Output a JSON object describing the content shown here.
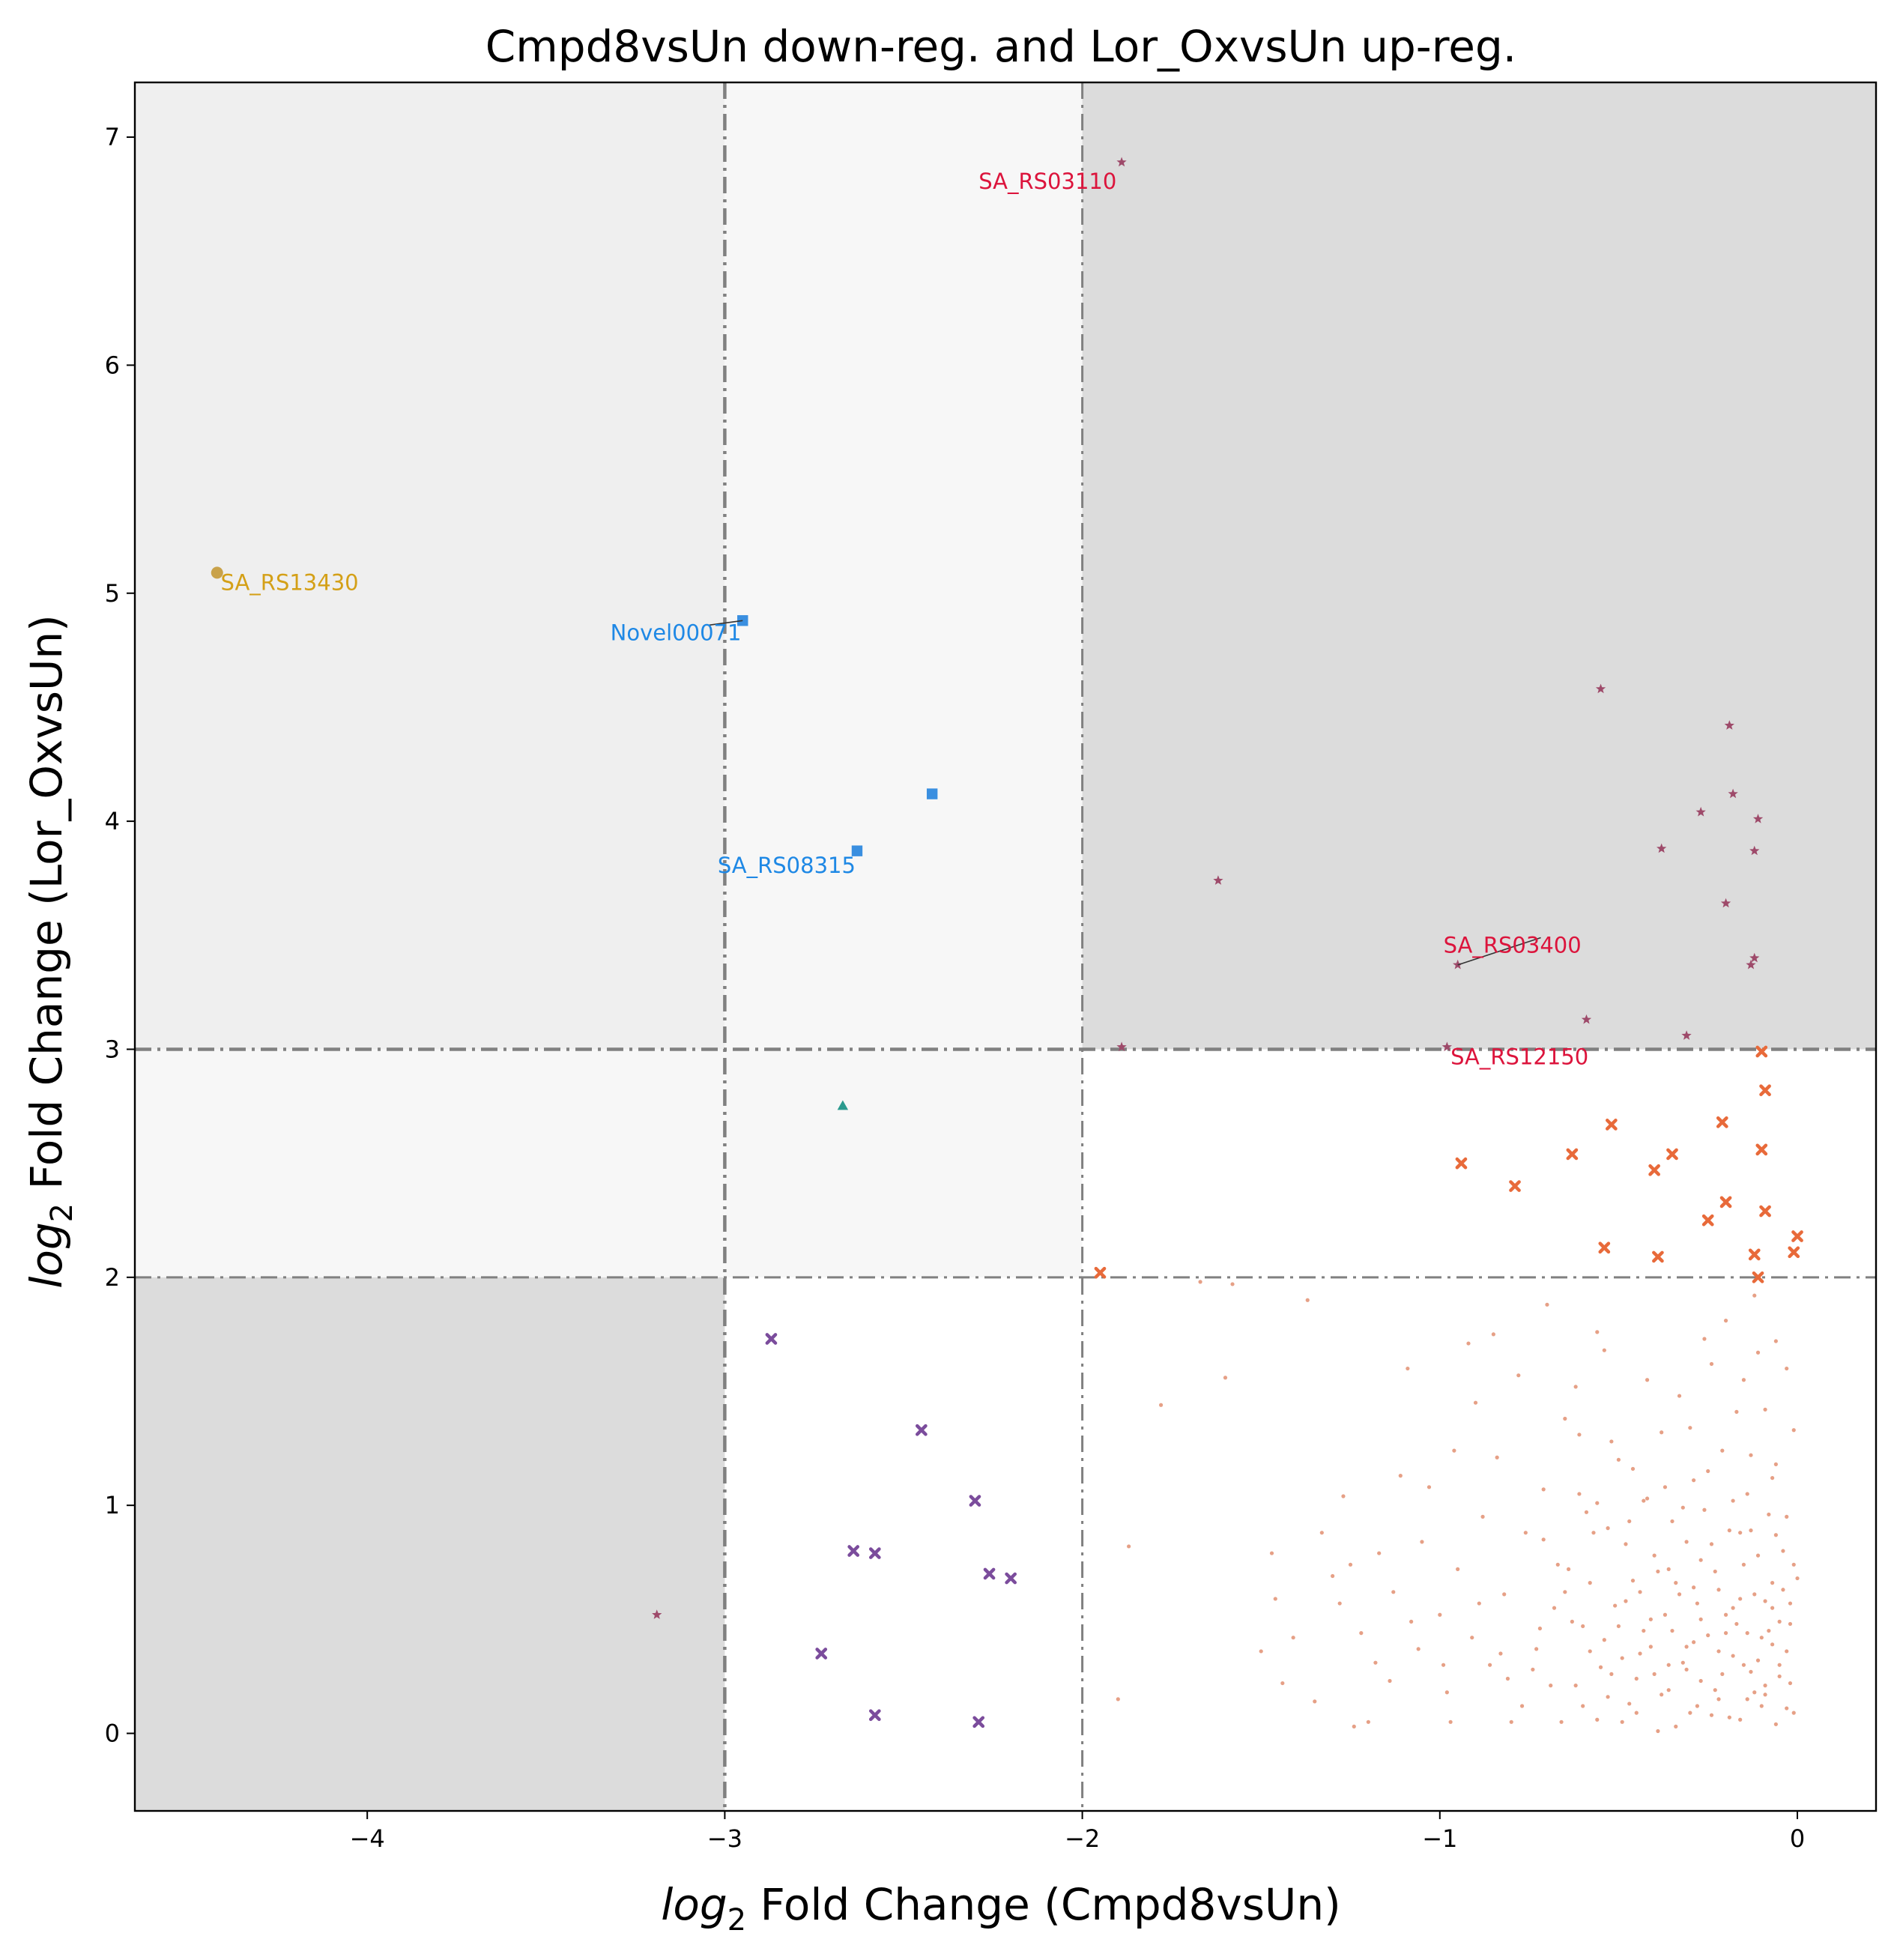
{
  "chart_data": {
    "type": "scatter",
    "title": "Cmpd8vsUn down-reg. and Lor_OxvsUn up-reg.",
    "xlabel": {
      "prefix": "log",
      "sub": "2",
      "rest": " Fold Change (Cmpd8vsUn)"
    },
    "ylabel": {
      "prefix": "log",
      "sub": "2",
      "rest": " Fold Change (Lor_OxvsUn)"
    },
    "xlim": [
      -4.65,
      0.22
    ],
    "ylim": [
      -0.34,
      7.24
    ],
    "xticks": [
      -4,
      -3,
      -2,
      -1,
      0
    ],
    "yticks": [
      0,
      1,
      2,
      3,
      4,
      5,
      6,
      7
    ],
    "xtick_labels": [
      "−4",
      "−3",
      "−2",
      "−1",
      "0"
    ],
    "ytick_labels": [
      "0",
      "1",
      "2",
      "3",
      "4",
      "5",
      "6",
      "7"
    ],
    "grid": false,
    "threshold_lines": {
      "x": [
        -3,
        -2
      ],
      "y": [
        2,
        3
      ]
    },
    "regions": [
      {
        "x": [
          -4.65,
          -3
        ],
        "y": [
          3,
          7.24
        ],
        "color": "#efefef"
      },
      {
        "x": [
          -3,
          -2
        ],
        "y": [
          2,
          7.24
        ],
        "color": "#f7f7f7"
      },
      {
        "x": [
          -4.65,
          -3
        ],
        "y": [
          2,
          3
        ],
        "color": "#f7f7f7"
      },
      {
        "x": [
          -2,
          0.22
        ],
        "y": [
          3,
          7.24
        ],
        "color": "#dcdcdc"
      },
      {
        "x": [
          -4.65,
          -3
        ],
        "y": [
          -0.34,
          2
        ],
        "color": "#dcdcdc"
      }
    ],
    "series": [
      {
        "marker": "circle",
        "color": "#c9a24a",
        "size": 8,
        "points": [
          [
            -4.42,
            5.09
          ]
        ]
      },
      {
        "marker": "square",
        "color": "#3a8fe0",
        "size": 9,
        "points": [
          [
            -2.95,
            4.88
          ],
          [
            -2.42,
            4.12
          ],
          [
            -2.63,
            3.87
          ]
        ]
      },
      {
        "marker": "star",
        "color": "#9e4a6a",
        "size": 7,
        "points": [
          [
            -1.89,
            6.89
          ],
          [
            -0.55,
            4.58
          ],
          [
            -0.19,
            4.42
          ],
          [
            -0.18,
            4.12
          ],
          [
            -0.27,
            4.04
          ],
          [
            -0.11,
            4.01
          ],
          [
            -0.38,
            3.88
          ],
          [
            -0.12,
            3.87
          ],
          [
            -1.62,
            3.74
          ],
          [
            -0.2,
            3.64
          ],
          [
            -0.12,
            3.4
          ],
          [
            -0.13,
            3.37
          ],
          [
            -0.95,
            3.37
          ],
          [
            -0.59,
            3.13
          ],
          [
            -0.31,
            3.06
          ],
          [
            -1.89,
            3.01
          ],
          [
            -0.98,
            3.01
          ],
          [
            -3.19,
            0.52
          ]
        ]
      },
      {
        "marker": "triangle",
        "color": "#2a9a8e",
        "size": 8,
        "points": [
          [
            -2.67,
            2.75
          ]
        ]
      },
      {
        "marker": "x",
        "color": "#e86a3a",
        "size": 8,
        "points": [
          [
            -0.1,
            2.99
          ],
          [
            -0.09,
            2.82
          ],
          [
            -0.21,
            2.68
          ],
          [
            -0.52,
            2.67
          ],
          [
            -0.1,
            2.56
          ],
          [
            -0.63,
            2.54
          ],
          [
            -0.35,
            2.54
          ],
          [
            -0.94,
            2.5
          ],
          [
            -0.4,
            2.47
          ],
          [
            -0.79,
            2.4
          ],
          [
            -0.2,
            2.33
          ],
          [
            -0.09,
            2.29
          ],
          [
            -0.25,
            2.25
          ],
          [
            0.0,
            2.18
          ],
          [
            -0.54,
            2.13
          ],
          [
            -0.01,
            2.11
          ],
          [
            -0.12,
            2.1
          ],
          [
            -0.39,
            2.09
          ],
          [
            -1.95,
            2.02
          ],
          [
            -0.11,
            2.0
          ]
        ]
      },
      {
        "marker": "x",
        "color": "#7b4c9c",
        "size": 8,
        "points": [
          [
            -2.87,
            1.73
          ],
          [
            -2.45,
            1.33
          ],
          [
            -2.3,
            1.02
          ],
          [
            -2.64,
            0.8
          ],
          [
            -2.58,
            0.79
          ],
          [
            -2.26,
            0.7
          ],
          [
            -2.2,
            0.68
          ],
          [
            -2.73,
            0.35
          ],
          [
            -2.58,
            0.08
          ],
          [
            -2.29,
            0.05
          ]
        ]
      },
      {
        "marker": "dot",
        "color": "#e08868",
        "size": 2.6,
        "points": [
          [
            -1.67,
            1.98
          ],
          [
            -1.58,
            1.97
          ],
          [
            -1.37,
            1.9
          ],
          [
            -1.87,
            0.82
          ],
          [
            -1.78,
            1.44
          ],
          [
            -1.6,
            1.56
          ],
          [
            -1.47,
            0.79
          ],
          [
            -1.46,
            0.59
          ],
          [
            -1.41,
            0.42
          ],
          [
            -1.35,
            0.14
          ],
          [
            -1.33,
            0.88
          ],
          [
            -1.3,
            0.69
          ],
          [
            -1.27,
            1.04
          ],
          [
            -1.25,
            0.74
          ],
          [
            -1.22,
            0.44
          ],
          [
            -1.2,
            0.05
          ],
          [
            -1.17,
            0.79
          ],
          [
            -1.13,
            0.62
          ],
          [
            -1.11,
            1.13
          ],
          [
            -1.09,
            1.6
          ],
          [
            -1.06,
            0.37
          ],
          [
            -1.05,
            0.84
          ],
          [
            -1.03,
            1.08
          ],
          [
            -1.0,
            0.52
          ],
          [
            -0.98,
            0.18
          ],
          [
            -0.95,
            0.72
          ],
          [
            -0.92,
            1.71
          ],
          [
            -0.9,
            1.45
          ],
          [
            -0.88,
            0.95
          ],
          [
            -0.86,
            0.3
          ],
          [
            -0.84,
            1.21
          ],
          [
            -0.82,
            0.61
          ],
          [
            -0.8,
            0.05
          ],
          [
            -0.78,
            1.57
          ],
          [
            -0.76,
            0.88
          ],
          [
            -0.73,
            0.37
          ],
          [
            -0.71,
            1.07
          ],
          [
            -0.69,
            0.21
          ],
          [
            -0.67,
            0.74
          ],
          [
            -0.65,
            1.38
          ],
          [
            -0.63,
            0.49
          ],
          [
            -0.61,
            1.05
          ],
          [
            -0.6,
            0.12
          ],
          [
            -0.58,
            0.66
          ],
          [
            -0.56,
            1.76
          ],
          [
            -0.55,
            0.29
          ],
          [
            -0.53,
            0.9
          ],
          [
            -0.52,
            1.28
          ],
          [
            -0.5,
            0.47
          ],
          [
            -0.49,
            0.05
          ],
          [
            -0.48,
            0.83
          ],
          [
            -0.46,
            1.16
          ],
          [
            -0.45,
            0.24
          ],
          [
            -0.44,
            0.62
          ],
          [
            -0.43,
            1.02
          ],
          [
            -0.41,
            0.38
          ],
          [
            -0.4,
            0.78
          ],
          [
            -0.39,
            0.01
          ],
          [
            -0.38,
            1.32
          ],
          [
            -0.37,
            0.52
          ],
          [
            -0.36,
            0.19
          ],
          [
            -0.35,
            0.93
          ],
          [
            -0.34,
            0.66
          ],
          [
            -0.33,
            1.48
          ],
          [
            -0.32,
            0.31
          ],
          [
            -0.31,
            0.84
          ],
          [
            -0.3,
            0.09
          ],
          [
            -0.29,
            1.11
          ],
          [
            -0.28,
            0.57
          ],
          [
            -0.27,
            0.23
          ],
          [
            -0.26,
            0.98
          ],
          [
            -0.25,
            0.43
          ],
          [
            -0.24,
            1.62
          ],
          [
            -0.23,
            0.71
          ],
          [
            -0.22,
            0.15
          ],
          [
            -0.21,
            1.24
          ],
          [
            -0.2,
            0.52
          ],
          [
            -0.19,
            0.89
          ],
          [
            -0.18,
            0.34
          ],
          [
            -0.17,
            1.41
          ],
          [
            -0.16,
            0.06
          ],
          [
            -0.15,
            0.74
          ],
          [
            -0.14,
            1.05
          ],
          [
            -0.13,
            0.27
          ],
          [
            -0.12,
            0.61
          ],
          [
            -0.11,
            1.67
          ],
          [
            -0.1,
            0.42
          ],
          [
            -0.09,
            0.17
          ],
          [
            -0.08,
            0.96
          ],
          [
            -0.07,
            0.55
          ],
          [
            -0.06,
            1.18
          ],
          [
            -0.05,
            0.3
          ],
          [
            -0.04,
            0.8
          ],
          [
            -0.03,
            0.11
          ],
          [
            -0.02,
            0.48
          ],
          [
            -0.01,
            1.33
          ],
          [
            0.0,
            0.68
          ],
          [
            -0.57,
            0.88
          ],
          [
            -0.44,
            0.35
          ],
          [
            -0.33,
            0.61
          ],
          [
            -0.26,
            1.73
          ],
          [
            -0.17,
            0.48
          ],
          [
            -0.09,
            0.21
          ],
          [
            -0.03,
            0.95
          ],
          [
            -0.47,
            0.13
          ],
          [
            -0.36,
            0.72
          ],
          [
            -0.22,
            0.36
          ],
          [
            -0.13,
            0.89
          ],
          [
            -0.06,
            0.04
          ],
          [
            -0.51,
            0.56
          ],
          [
            -0.42,
            1.03
          ],
          [
            -0.29,
            0.4
          ],
          [
            -0.19,
            0.07
          ],
          [
            -0.11,
            0.32
          ],
          [
            -0.04,
            0.63
          ],
          [
            -0.62,
            0.21
          ],
          [
            -0.54,
            0.41
          ],
          [
            -0.46,
            0.67
          ],
          [
            -0.38,
            0.17
          ],
          [
            -0.31,
            0.28
          ],
          [
            -0.24,
            0.08
          ],
          [
            -0.16,
            0.59
          ],
          [
            -0.08,
            0.45
          ],
          [
            -0.02,
            0.22
          ],
          [
            -0.68,
            0.55
          ],
          [
            -0.59,
            0.97
          ],
          [
            -0.49,
            0.33
          ],
          [
            -0.41,
            0.5
          ],
          [
            -0.34,
            0.03
          ],
          [
            -0.27,
            0.76
          ],
          [
            -0.21,
            0.26
          ],
          [
            -0.14,
            0.15
          ],
          [
            -0.07,
            0.39
          ],
          [
            -0.01,
            0.09
          ],
          [
            -0.74,
            0.28
          ],
          [
            -0.66,
            0.05
          ],
          [
            -0.15,
            0.3
          ],
          [
            -0.12,
            0.18
          ],
          [
            -0.1,
            0.12
          ],
          [
            -0.05,
            0.25
          ],
          [
            -0.03,
            0.36
          ],
          [
            -0.2,
            0.44
          ],
          [
            -0.23,
            0.19
          ],
          [
            -0.28,
            0.12
          ],
          [
            -0.35,
            0.45
          ],
          [
            -0.4,
            0.26
          ],
          [
            -0.45,
            0.09
          ],
          [
            -0.53,
            0.16
          ],
          [
            -0.58,
            0.36
          ],
          [
            -0.64,
            0.72
          ],
          [
            -0.72,
            0.46
          ],
          [
            -0.81,
            0.24
          ],
          [
            -0.89,
            0.57
          ],
          [
            -0.97,
            0.05
          ],
          [
            -1.14,
            0.23
          ],
          [
            -1.24,
            0.03
          ],
          [
            -1.5,
            0.36
          ],
          [
            -1.9,
            0.15
          ],
          [
            -0.96,
            1.24
          ],
          [
            -0.85,
            1.75
          ],
          [
            -0.7,
            1.88
          ],
          [
            -0.62,
            1.52
          ],
          [
            -0.54,
            1.68
          ],
          [
            -0.42,
            1.55
          ],
          [
            -0.3,
            1.34
          ],
          [
            -0.2,
            1.81
          ],
          [
            -0.15,
            1.55
          ],
          [
            -0.12,
            1.92
          ],
          [
            -0.09,
            1.42
          ],
          [
            -0.06,
            1.72
          ],
          [
            -0.03,
            1.6
          ],
          [
            -0.07,
            1.12
          ],
          [
            -0.13,
            1.22
          ],
          [
            -0.18,
            1.02
          ],
          [
            -0.25,
            1.15
          ],
          [
            -0.32,
            0.99
          ],
          [
            -0.37,
            1.08
          ],
          [
            -0.5,
            1.2
          ],
          [
            -0.56,
            1.01
          ],
          [
            -0.61,
            1.31
          ],
          [
            -0.07,
            0.66
          ],
          [
            -0.11,
            0.78
          ],
          [
            -0.16,
            0.88
          ],
          [
            -0.24,
            0.83
          ],
          [
            -0.29,
            0.64
          ],
          [
            -0.39,
            0.71
          ],
          [
            -0.47,
            0.93
          ],
          [
            -0.06,
            0.87
          ],
          [
            -0.01,
            0.74
          ],
          [
            -0.02,
            0.57
          ],
          [
            -0.05,
            0.49
          ],
          [
            -0.09,
            0.58
          ],
          [
            -0.14,
            0.44
          ],
          [
            -0.18,
            0.55
          ],
          [
            -0.22,
            0.63
          ],
          [
            -0.27,
            0.5
          ],
          [
            -0.31,
            0.38
          ],
          [
            -0.36,
            0.3
          ],
          [
            -0.43,
            0.45
          ],
          [
            -0.48,
            0.58
          ],
          [
            -0.52,
            0.26
          ],
          [
            -0.56,
            0.06
          ],
          [
            -0.6,
            0.47
          ],
          [
            -0.65,
            0.62
          ],
          [
            -0.71,
            0.85
          ],
          [
            -0.77,
            0.12
          ],
          [
            -0.83,
            0.35
          ],
          [
            -0.91,
            0.42
          ],
          [
            -0.99,
            0.3
          ],
          [
            -1.08,
            0.49
          ],
          [
            -1.18,
            0.31
          ],
          [
            -1.28,
            0.57
          ],
          [
            -1.44,
            0.22
          ]
        ]
      }
    ],
    "annotations": [
      {
        "text": "SA_RS13430",
        "x": -4.42,
        "y": 5.09,
        "tx": -4.41,
        "ty": 5.04,
        "color": "#d4a017",
        "leader": false
      },
      {
        "text": "Novel00071",
        "x": -2.95,
        "y": 4.88,
        "tx": -3.32,
        "ty": 4.82,
        "color": "#1e88e5",
        "leader": true
      },
      {
        "text": "SA_RS08315",
        "x": -2.63,
        "y": 3.87,
        "tx": -3.02,
        "ty": 3.8,
        "color": "#1e88e5",
        "leader": false
      },
      {
        "text": "SA_RS03110",
        "x": -1.89,
        "y": 6.89,
        "tx": -2.29,
        "ty": 6.8,
        "color": "#dc143c",
        "leader": false
      },
      {
        "text": "SA_RS03400",
        "x": -0.95,
        "y": 3.37,
        "tx": -0.99,
        "ty": 3.45,
        "color": "#dc143c",
        "leader": true
      },
      {
        "text": "SA_RS12150",
        "x": -0.98,
        "y": 3.01,
        "tx": -0.97,
        "ty": 2.96,
        "color": "#dc143c",
        "leader": false
      }
    ]
  }
}
